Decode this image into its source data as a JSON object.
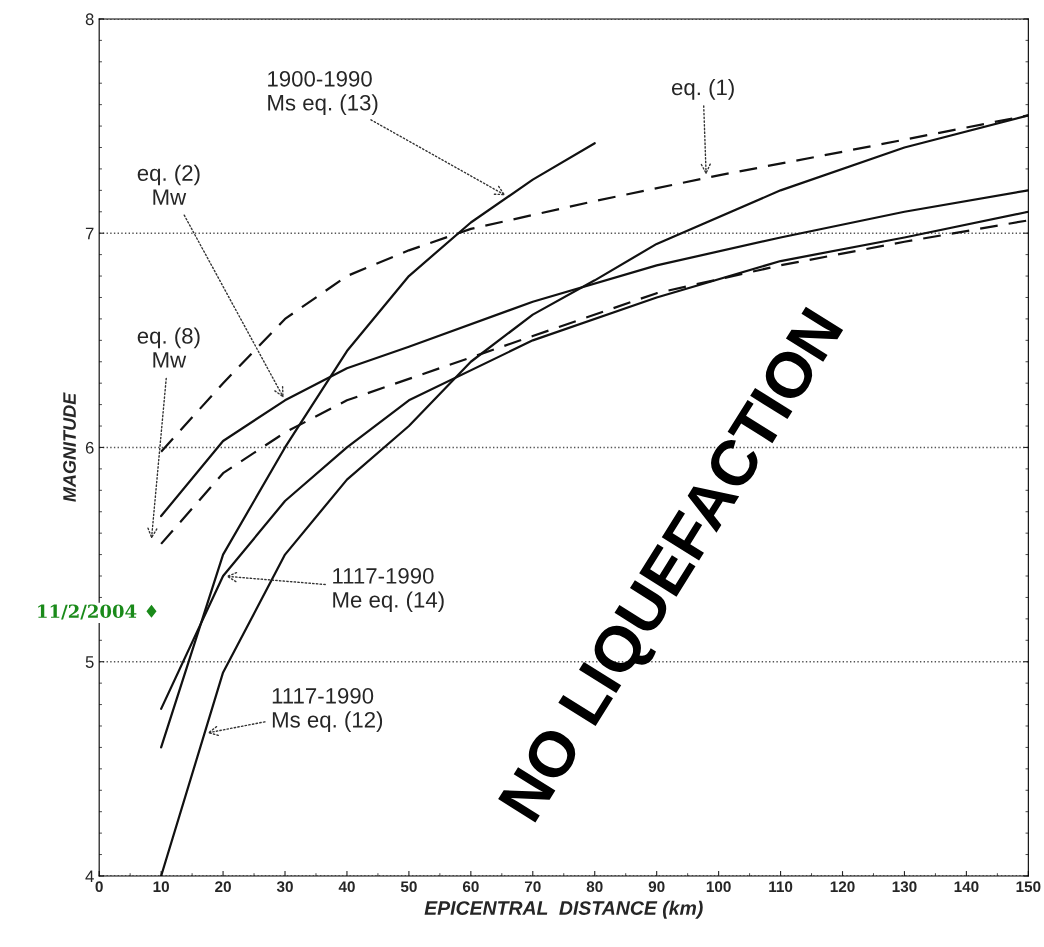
{
  "chart_data": {
    "type": "line",
    "xlabel": "EPICENTRAL  DISTANCE (km)",
    "ylabel": "MAGNITUDE",
    "xlim": [
      0,
      150
    ],
    "ylim": [
      4,
      8
    ],
    "xticks": [
      0,
      10,
      20,
      30,
      40,
      50,
      60,
      70,
      80,
      90,
      100,
      110,
      120,
      130,
      140,
      150
    ],
    "yticks": [
      4,
      5,
      6,
      7,
      8
    ],
    "grid": "y",
    "marker": "none",
    "series": [
      {
        "color": "#111111",
        "line_style": "dashed",
        "x": [
          10,
          20,
          30,
          40,
          50,
          60,
          80,
          100,
          120,
          150
        ],
        "values": [
          5.98,
          6.3,
          6.6,
          6.8,
          6.92,
          7.02,
          7.15,
          7.27,
          7.38,
          7.55
        ]
      },
      {
        "color": "#111111",
        "line_style": "solid",
        "x": [
          10,
          20,
          30,
          40,
          50,
          70,
          90,
          110,
          130,
          150
        ],
        "values": [
          5.68,
          6.03,
          6.22,
          6.37,
          6.47,
          6.68,
          6.85,
          6.98,
          7.1,
          7.2
        ]
      },
      {
        "color": "#111111",
        "line_style": "dashed",
        "x": [
          10,
          20,
          30,
          40,
          50,
          70,
          90,
          110,
          130,
          150
        ],
        "values": [
          5.55,
          5.88,
          6.07,
          6.22,
          6.32,
          6.52,
          6.72,
          6.85,
          6.96,
          7.06
        ]
      },
      {
        "color": "#111111",
        "line_style": "solid",
        "x": [
          10,
          20,
          30,
          40,
          50,
          60,
          70,
          80
        ],
        "values": [
          4.6,
          5.5,
          6.0,
          6.45,
          6.8,
          7.05,
          7.25,
          7.42
        ]
      },
      {
        "color": "#111111",
        "line_style": "solid",
        "x": [
          10,
          20,
          30,
          40,
          50,
          70,
          90,
          110,
          130,
          150
        ],
        "values": [
          4.78,
          5.4,
          5.75,
          6.0,
          6.22,
          6.5,
          6.7,
          6.87,
          6.98,
          7.1
        ]
      },
      {
        "color": "#111111",
        "line_style": "solid",
        "x": [
          10,
          20,
          30,
          40,
          50,
          60,
          70,
          80,
          90,
          110,
          130,
          150
        ],
        "values": [
          4.0,
          4.95,
          5.5,
          5.85,
          6.1,
          6.4,
          6.62,
          6.78,
          6.95,
          7.2,
          7.4,
          7.55
        ]
      }
    ],
    "annotations": [
      {
        "text": "1900-1990\nMs eq. (13)",
        "x": 66,
        "y": 7.17
      },
      {
        "text": "eq. (1)",
        "x": 98,
        "y": 7.26
      },
      {
        "text": "eq. (2)\nMw",
        "x": 30,
        "y": 6.22
      },
      "eq. (8)\nMw",
      {
        "text": "1117-1990\nMe eq. (14)",
        "x": 20,
        "y": 5.4
      },
      {
        "text": "1117-1990\nMs eq. (12)",
        "x": 17,
        "y": 4.665
      },
      "NO LIQUEFACTION",
      "11/2/2004 ♦"
    ]
  }
}
